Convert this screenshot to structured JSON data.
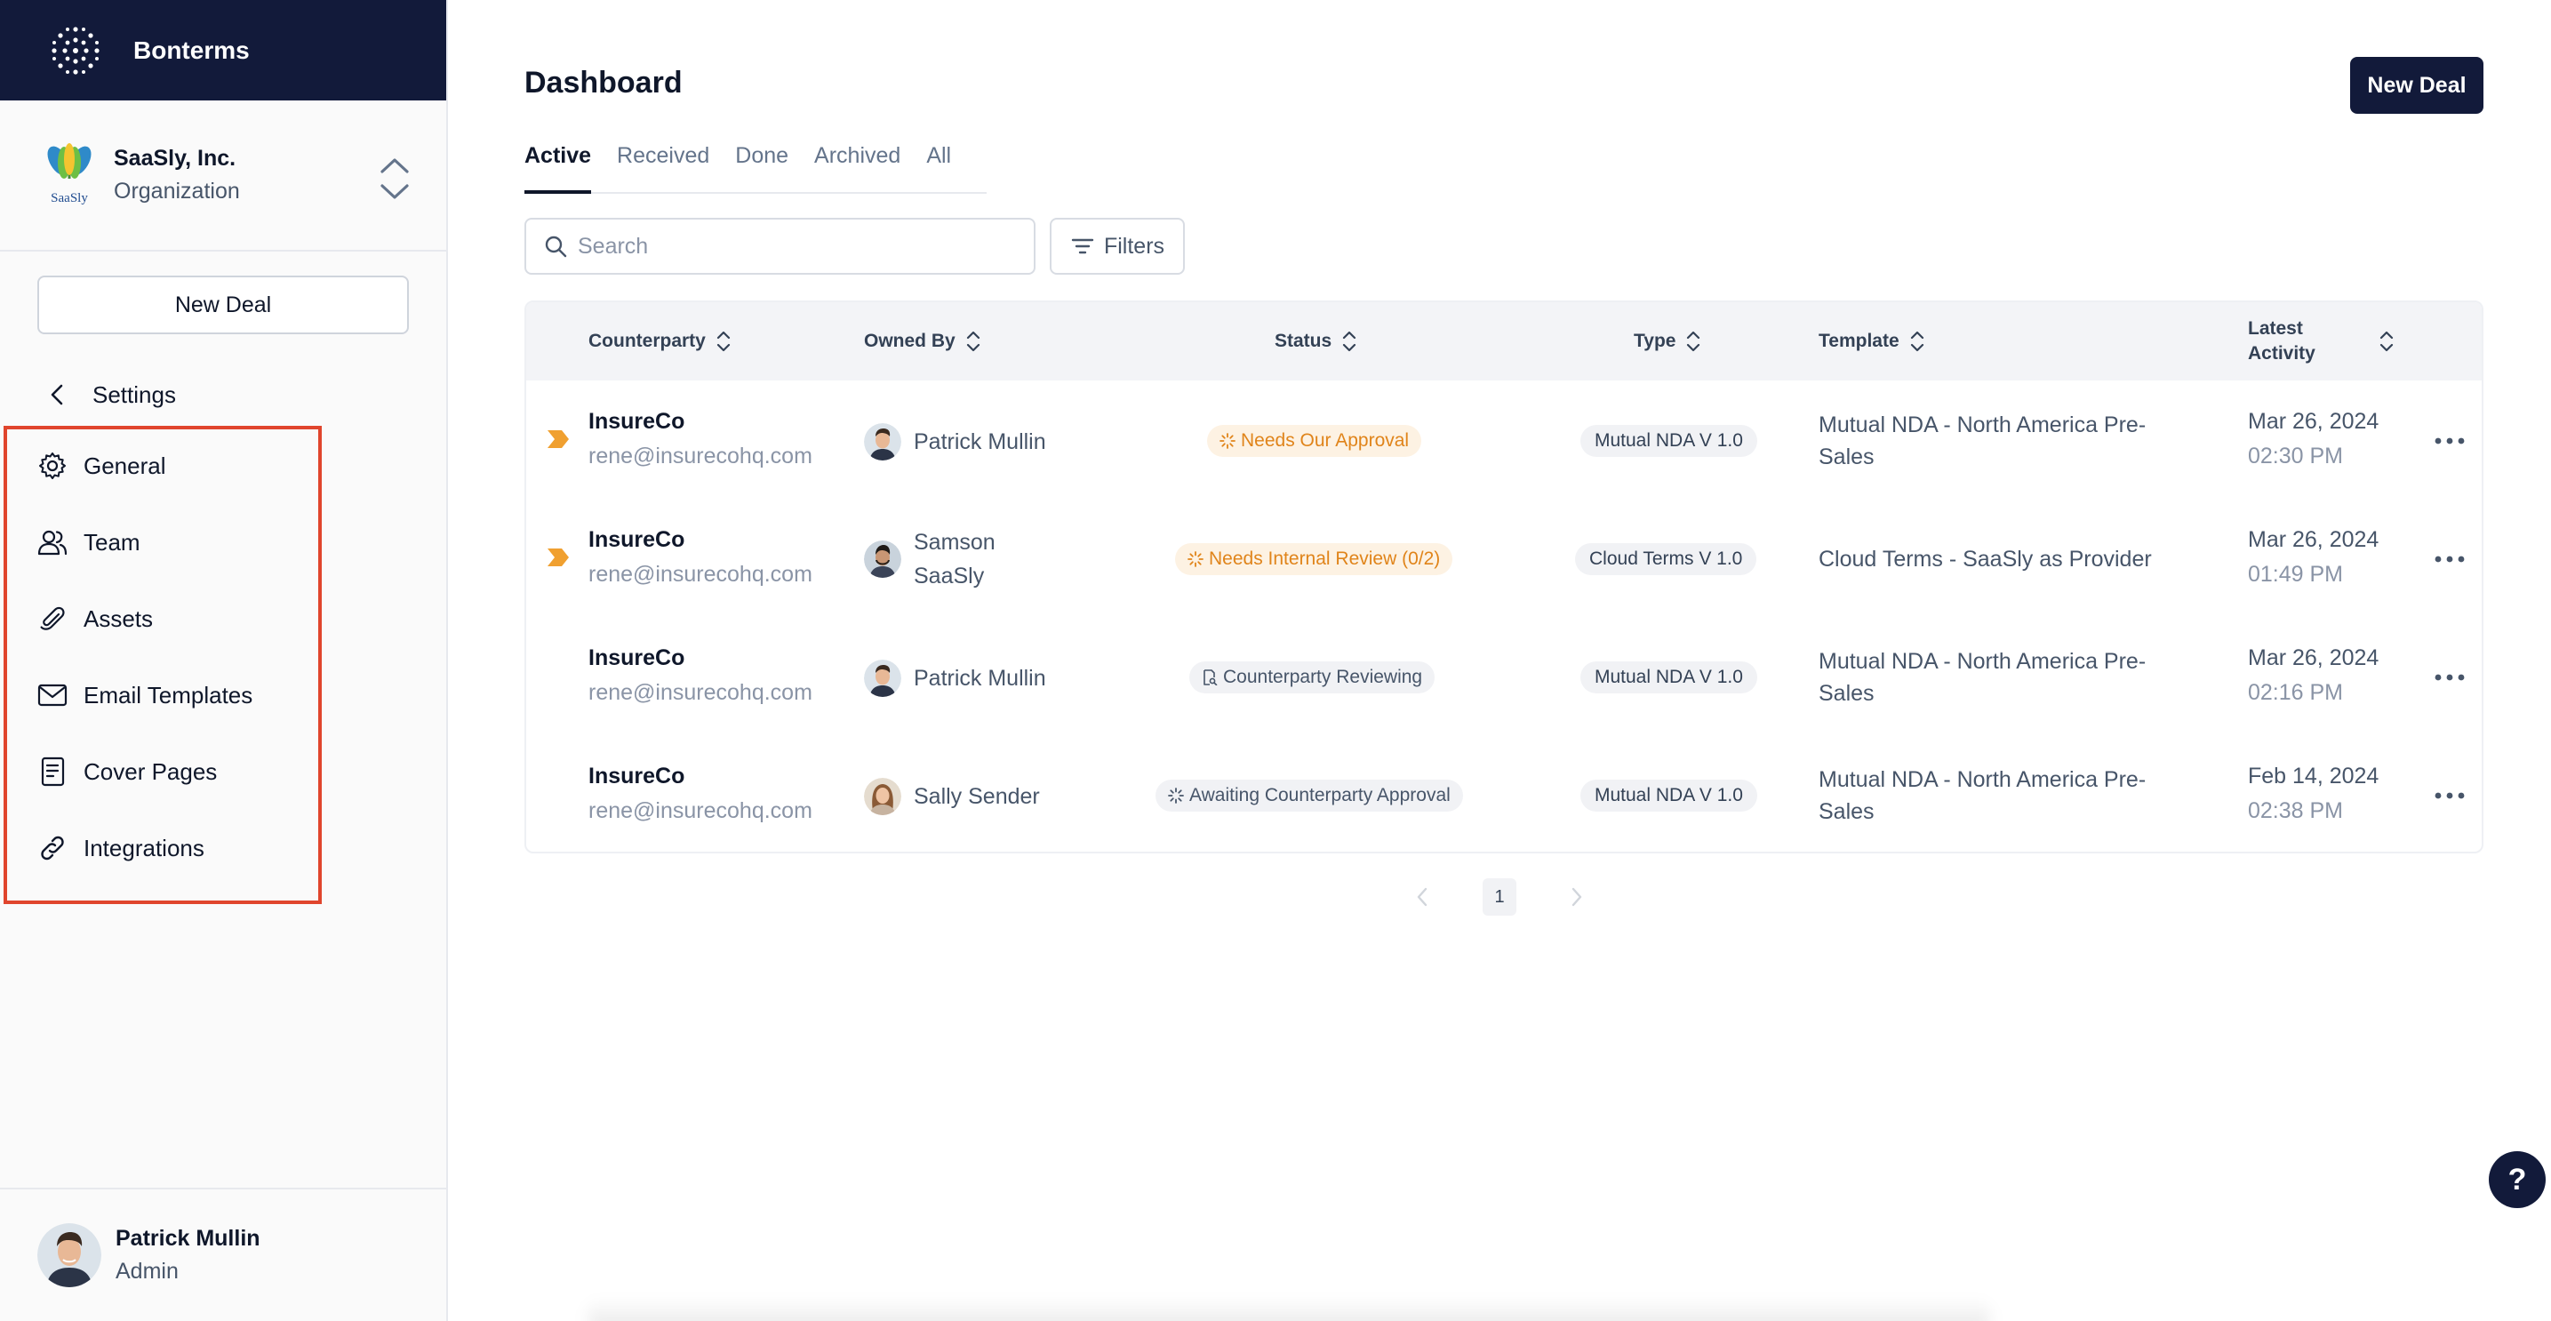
{
  "app": {
    "name": "Bonterms"
  },
  "organization": {
    "name": "SaaSly, Inc.",
    "role": "Organization",
    "logo_text": "SaaSly"
  },
  "sidebar": {
    "new_deal_label": "New Deal",
    "settings_label": "Settings",
    "items": [
      {
        "label": "General",
        "icon": "gear-icon"
      },
      {
        "label": "Team",
        "icon": "team-icon"
      },
      {
        "label": "Assets",
        "icon": "paperclip-icon"
      },
      {
        "label": "Email Templates",
        "icon": "mail-icon"
      },
      {
        "label": "Cover Pages",
        "icon": "document-icon"
      },
      {
        "label": "Integrations",
        "icon": "link-icon"
      }
    ]
  },
  "user": {
    "name": "Patrick Mullin",
    "role": "Admin"
  },
  "header": {
    "title": "Dashboard",
    "new_deal_label": "New Deal"
  },
  "tabs": [
    {
      "label": "Active",
      "active": true
    },
    {
      "label": "Received",
      "active": false
    },
    {
      "label": "Done",
      "active": false
    },
    {
      "label": "Archived",
      "active": false
    },
    {
      "label": "All",
      "active": false
    }
  ],
  "search": {
    "placeholder": "Search",
    "value": ""
  },
  "filters_label": "Filters",
  "table": {
    "columns": {
      "counterparty": "Counterparty",
      "owned_by": "Owned By",
      "status": "Status",
      "type": "Type",
      "template": "Template",
      "latest_activity": "Latest Activity"
    },
    "rows": [
      {
        "flagged": true,
        "counterparty": "InsureCo",
        "email": "rene@insurecohq.com",
        "owner": "Patrick Mullin",
        "status": "Needs Our Approval",
        "status_color": "orange",
        "type": "Mutual NDA V 1.0",
        "template": "Mutual NDA - North America Pre-Sales",
        "date": "Mar 26, 2024",
        "time": "02:30 PM"
      },
      {
        "flagged": true,
        "counterparty": "InsureCo",
        "email": "rene@insurecohq.com",
        "owner": "Samson SaaSly",
        "status": "Needs Internal Review (0/2)",
        "status_color": "orange",
        "type": "Cloud Terms V 1.0",
        "template": "Cloud Terms - SaaSly as Provider",
        "date": "Mar 26, 2024",
        "time": "01:49 PM"
      },
      {
        "flagged": false,
        "counterparty": "InsureCo",
        "email": "rene@insurecohq.com",
        "owner": "Patrick Mullin",
        "status": "Counterparty Reviewing",
        "status_color": "gray",
        "type": "Mutual NDA V 1.0",
        "template": "Mutual NDA - North America Pre-Sales",
        "date": "Mar 26, 2024",
        "time": "02:16 PM"
      },
      {
        "flagged": false,
        "counterparty": "InsureCo",
        "email": "rene@insurecohq.com",
        "owner": "Sally Sender",
        "status": "Awaiting Counterparty Approval",
        "status_color": "gray",
        "type": "Mutual NDA V 1.0",
        "template": "Mutual NDA - North America Pre-Sales",
        "date": "Feb 14, 2024",
        "time": "02:38 PM"
      }
    ]
  },
  "pagination": {
    "current_page": "1"
  },
  "help_label": "?",
  "colors": {
    "brand_navy": "#121a3a",
    "highlight_red": "#e0452d",
    "status_orange": "#e0841a"
  }
}
